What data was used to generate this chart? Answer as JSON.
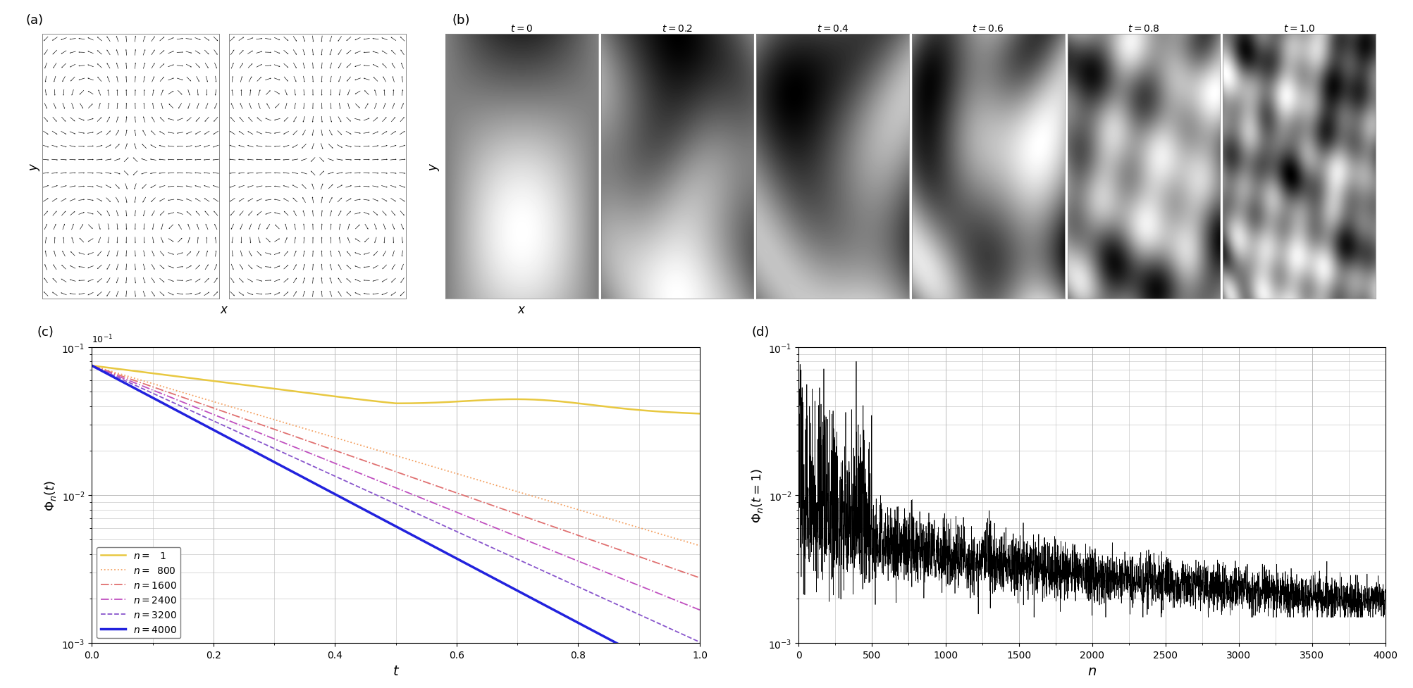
{
  "panel_c_styles": [
    {
      "color": "#e8c840",
      "lw": 1.8,
      "ls": "-",
      "label": "n =    1"
    },
    {
      "color": "#f4a060",
      "lw": 1.3,
      "ls": ":",
      "label": "n =  800"
    },
    {
      "color": "#e07070",
      "lw": 1.3,
      "ls": "-.",
      "label": "n = 1600"
    },
    {
      "color": "#c050c0",
      "lw": 1.3,
      "ls": "-.",
      "label": "n = 2400"
    },
    {
      "color": "#8855cc",
      "lw": 1.3,
      "ls": "--",
      "label": "n = 3200"
    },
    {
      "color": "#2222dd",
      "lw": 2.5,
      "ls": "-",
      "label": "n = 4000"
    }
  ],
  "grid_color": "#bbbbbb",
  "bg_color": "white"
}
